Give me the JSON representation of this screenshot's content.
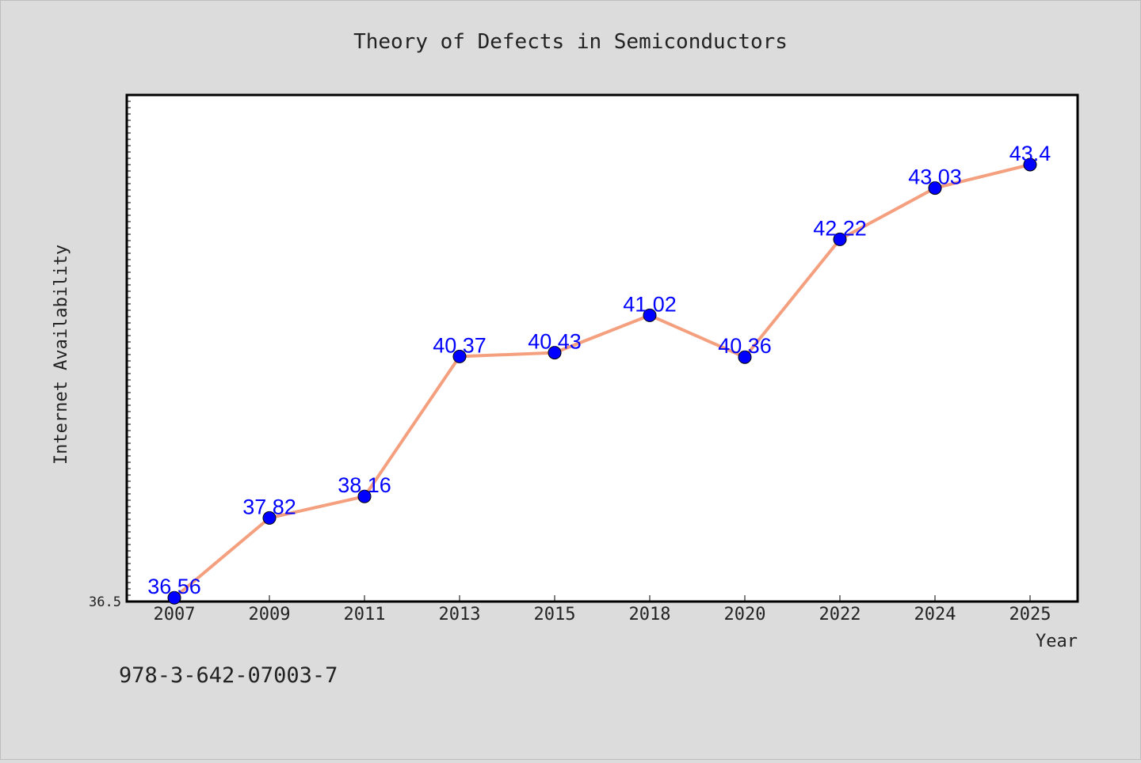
{
  "chart_data": {
    "type": "line",
    "title": "Theory of Defects in Semiconductors",
    "xlabel": "Year",
    "ylabel": "Internet Availability",
    "categories": [
      "2007",
      "2009",
      "2011",
      "2013",
      "2015",
      "2018",
      "2020",
      "2022",
      "2024",
      "2025"
    ],
    "series": [
      {
        "values": [
          36.56,
          37.82,
          38.16,
          40.37,
          40.43,
          41.02,
          40.36,
          42.22,
          43.03,
          43.4
        ],
        "labels": [
          "36.56",
          "37.82",
          "38.16",
          "40.37",
          "40.43",
          "41.02",
          "40.36",
          "42.22",
          "43.03",
          "43.4"
        ]
      }
    ],
    "ylim": [
      36.5,
      44.5
    ],
    "y_tick_label": "36.5",
    "grid": false,
    "legend": "none",
    "colors": {
      "line": "#f4a07f",
      "marker": "#0000ff",
      "data_label": "#0000ff",
      "background": "#dcdcdc",
      "plot_background": "#ffffff"
    }
  },
  "footer": {
    "isbn": "978-3-642-07003-7"
  }
}
